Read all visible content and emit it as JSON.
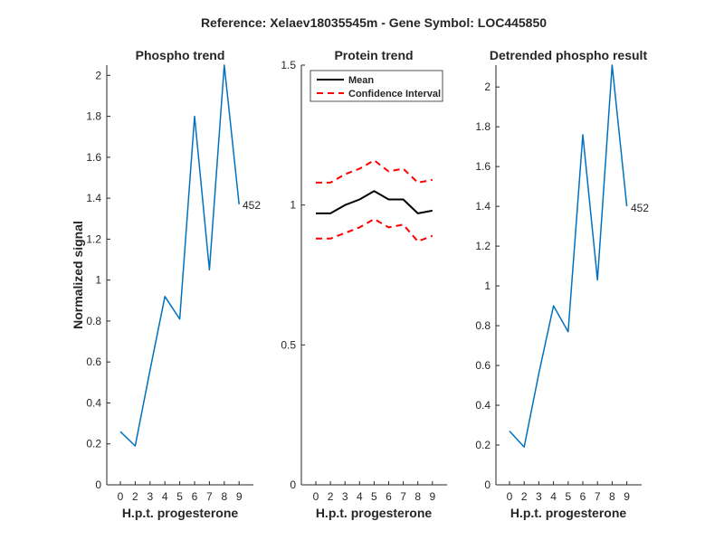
{
  "figure": {
    "suptitle": "Reference:  Xelaev18035545m - Gene Symbol:  LOC445850"
  },
  "chart_data": [
    {
      "type": "line",
      "title": "Phospho trend",
      "xlabel": "H.p.t. progesterone",
      "ylabel": "Normalized signal",
      "categories": [
        "0",
        "2",
        "3",
        "4",
        "5",
        "6",
        "7",
        "8",
        "9"
      ],
      "series": [
        {
          "values": [
            0.26,
            0.19,
            0.56,
            0.92,
            0.81,
            1.8,
            1.05,
            2.05,
            1.37
          ],
          "color": "#0072BD"
        }
      ],
      "annotation": "452",
      "ylim": [
        0,
        2.05
      ],
      "yticks": [
        0,
        0.2,
        0.4,
        0.6,
        0.8,
        1,
        1.2,
        1.4,
        1.6,
        1.8,
        2
      ],
      "ytick_labels": [
        "0",
        "0.2",
        "0.4",
        "0.6",
        "0.8",
        "1",
        "1.2",
        "1.4",
        "1.6",
        "1.8",
        "2"
      ]
    },
    {
      "type": "line",
      "title": "Protein trend",
      "xlabel": "H.p.t. progesterone",
      "ylabel": "",
      "categories": [
        "0",
        "2",
        "3",
        "4",
        "5",
        "6",
        "7",
        "8",
        "9"
      ],
      "series": [
        {
          "name": "Mean",
          "values": [
            0.97,
            0.97,
            1.0,
            1.02,
            1.05,
            1.02,
            1.02,
            0.97,
            0.98
          ],
          "color": "#000000",
          "style": "solid"
        },
        {
          "name": "Confidence Interval",
          "values": [
            1.08,
            1.08,
            1.11,
            1.13,
            1.16,
            1.12,
            1.13,
            1.08,
            1.09
          ],
          "color": "#FF0000",
          "style": "dashed"
        },
        {
          "name": "",
          "values": [
            0.88,
            0.88,
            0.9,
            0.92,
            0.95,
            0.92,
            0.93,
            0.87,
            0.89
          ],
          "color": "#FF0000",
          "style": "dashed"
        }
      ],
      "legend_position": "top-left",
      "ylim": [
        0,
        1.5
      ],
      "yticks": [
        0,
        0.5,
        1,
        1.5
      ],
      "ytick_labels": [
        "0",
        "0.5",
        "1",
        "1.5"
      ]
    },
    {
      "type": "line",
      "title": "Detrended phospho result",
      "xlabel": "H.p.t. progesterone",
      "ylabel": "",
      "categories": [
        "0",
        "2",
        "3",
        "4",
        "5",
        "6",
        "7",
        "8",
        "9"
      ],
      "series": [
        {
          "values": [
            0.27,
            0.19,
            0.56,
            0.9,
            0.77,
            1.76,
            1.03,
            2.11,
            1.4
          ],
          "color": "#0072BD"
        }
      ],
      "annotation": "452",
      "ylim": [
        0,
        2.11
      ],
      "yticks": [
        0,
        0.2,
        0.4,
        0.6,
        0.8,
        1,
        1.2,
        1.4,
        1.6,
        1.8,
        2
      ],
      "ytick_labels": [
        "0",
        "0.2",
        "0.4",
        "0.6",
        "0.8",
        "1",
        "1.2",
        "1.4",
        "1.6",
        "1.8",
        "2"
      ]
    }
  ]
}
